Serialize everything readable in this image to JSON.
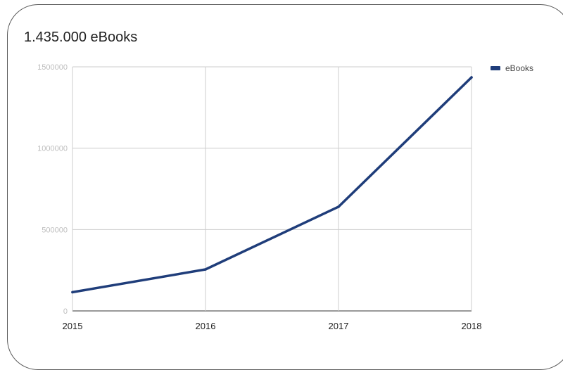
{
  "chart_data": {
    "type": "line",
    "title": "1.435.000 eBooks",
    "xlabel": "",
    "ylabel": "",
    "categories": [
      "2015",
      "2016",
      "2017",
      "2018"
    ],
    "series": [
      {
        "name": "eBooks",
        "values": [
          115000,
          255000,
          640000,
          1435000
        ],
        "color": "#1f3d7a"
      }
    ],
    "y_ticks": [
      "0",
      "500000",
      "1000000",
      "1500000"
    ],
    "ylim": [
      0,
      1500000
    ],
    "grid": true,
    "legend_position": "right"
  }
}
